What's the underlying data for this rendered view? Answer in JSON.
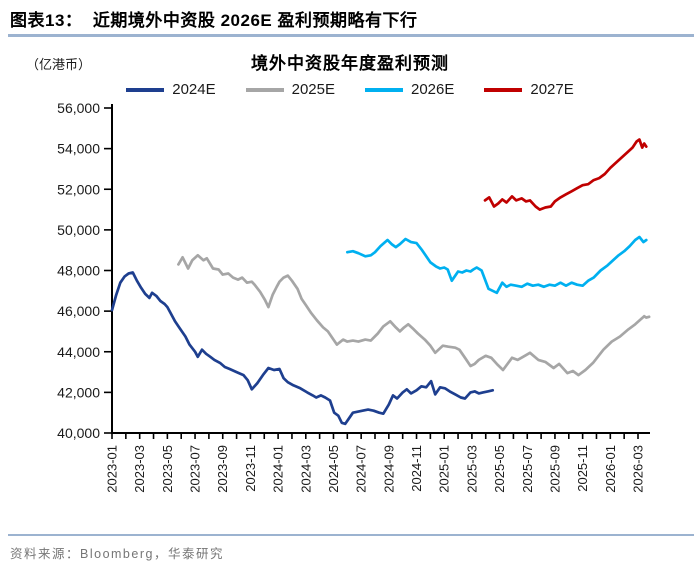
{
  "header": {
    "title": "图表13：  近期境外中资股 2026E 盈利预期略有下行"
  },
  "footer": {
    "source": "资料来源：Bloomberg，华泰研究"
  },
  "colors": {
    "accent_rule": "#9cb3d0",
    "axis": "#000000",
    "source_text": "#767676",
    "series_2024E": "#1e3f8f",
    "series_2025E": "#a6a6a6",
    "series_2026E": "#00b0f0",
    "series_2027E": "#c00000"
  },
  "chart_data": {
    "type": "line",
    "title": "境外中资股年度盈利预测",
    "unit_label": "（亿港币）",
    "ylabel": "",
    "xlabel": "",
    "ylim": [
      40000,
      56000
    ],
    "y_ticks": [
      40000,
      42000,
      44000,
      46000,
      48000,
      50000,
      52000,
      54000,
      56000
    ],
    "grid": false,
    "legend_position": "top",
    "x_note": "x values are months after 2023-01 (0 = 2023-01); axis ticks monthly, labels every 2 months",
    "x_tick_months": [
      0,
      2,
      4,
      6,
      8,
      10,
      12,
      14,
      16,
      18,
      20,
      22,
      24,
      26,
      28,
      30,
      32,
      34,
      36,
      38
    ],
    "x_tick_labels": [
      "2023-01",
      "2023-03",
      "2023-05",
      "2023-07",
      "2023-09",
      "2023-11",
      "2024-01",
      "2024-03",
      "2024-05",
      "2024-07",
      "2024-09",
      "2024-11",
      "2025-01",
      "2025-03",
      "2025-05",
      "2025-07",
      "2025-09",
      "2025-11",
      "2026-01",
      "2026-03"
    ],
    "series": [
      {
        "name": "2024E",
        "color": "#1e3f8f",
        "points": [
          [
            0,
            46050
          ],
          [
            0.3,
            46800
          ],
          [
            0.6,
            47400
          ],
          [
            0.9,
            47700
          ],
          [
            1.2,
            47850
          ],
          [
            1.5,
            47900
          ],
          [
            1.8,
            47500
          ],
          [
            2.1,
            47150
          ],
          [
            2.4,
            46850
          ],
          [
            2.7,
            46650
          ],
          [
            2.9,
            46900
          ],
          [
            3.2,
            46750
          ],
          [
            3.5,
            46500
          ],
          [
            3.8,
            46350
          ],
          [
            4.0,
            46200
          ],
          [
            4.2,
            45950
          ],
          [
            4.55,
            45500
          ],
          [
            4.9,
            45150
          ],
          [
            5.3,
            44750
          ],
          [
            5.6,
            44350
          ],
          [
            6.0,
            44000
          ],
          [
            6.2,
            43750
          ],
          [
            6.5,
            44100
          ],
          [
            6.8,
            43900
          ],
          [
            7.1,
            43750
          ],
          [
            7.4,
            43600
          ],
          [
            7.8,
            43450
          ],
          [
            8.15,
            43250
          ],
          [
            8.5,
            43150
          ],
          [
            9.0,
            43000
          ],
          [
            9.5,
            42850
          ],
          [
            9.8,
            42600
          ],
          [
            10.1,
            42150
          ],
          [
            10.5,
            42450
          ],
          [
            10.9,
            42850
          ],
          [
            11.3,
            43200
          ],
          [
            11.7,
            43100
          ],
          [
            12.1,
            43150
          ],
          [
            12.4,
            42700
          ],
          [
            12.7,
            42500
          ],
          [
            13.1,
            42350
          ],
          [
            13.6,
            42200
          ],
          [
            14.1,
            42000
          ],
          [
            14.5,
            41850
          ],
          [
            14.75,
            41750
          ],
          [
            15.1,
            41850
          ],
          [
            15.4,
            41750
          ],
          [
            15.75,
            41600
          ],
          [
            16.05,
            41000
          ],
          [
            16.35,
            40850
          ],
          [
            16.6,
            40500
          ],
          [
            16.85,
            40450
          ],
          [
            17.1,
            40700
          ],
          [
            17.4,
            41000
          ],
          [
            17.75,
            41050
          ],
          [
            18.1,
            41100
          ],
          [
            18.5,
            41150
          ],
          [
            18.9,
            41100
          ],
          [
            19.3,
            41000
          ],
          [
            19.6,
            40950
          ],
          [
            20.0,
            41400
          ],
          [
            20.3,
            41850
          ],
          [
            20.6,
            41700
          ],
          [
            21.0,
            42000
          ],
          [
            21.3,
            42150
          ],
          [
            21.6,
            41950
          ],
          [
            22.0,
            42100
          ],
          [
            22.35,
            42300
          ],
          [
            22.7,
            42250
          ],
          [
            23.05,
            42550
          ],
          [
            23.35,
            41900
          ],
          [
            23.7,
            42250
          ],
          [
            24.05,
            42200
          ],
          [
            24.4,
            42050
          ],
          [
            24.8,
            41900
          ],
          [
            25.2,
            41750
          ],
          [
            25.5,
            41700
          ],
          [
            25.9,
            42000
          ],
          [
            26.2,
            42050
          ],
          [
            26.5,
            41950
          ],
          [
            26.8,
            42000
          ],
          [
            27.15,
            42050
          ],
          [
            27.5,
            42100
          ]
        ]
      },
      {
        "name": "2025E",
        "color": "#a6a6a6",
        "points": [
          [
            4.8,
            48300
          ],
          [
            5.1,
            48650
          ],
          [
            5.5,
            48100
          ],
          [
            5.8,
            48500
          ],
          [
            6.2,
            48750
          ],
          [
            6.6,
            48500
          ],
          [
            6.85,
            48600
          ],
          [
            7.3,
            48100
          ],
          [
            7.7,
            48050
          ],
          [
            8.0,
            47800
          ],
          [
            8.4,
            47850
          ],
          [
            8.75,
            47650
          ],
          [
            9.1,
            47550
          ],
          [
            9.4,
            47650
          ],
          [
            9.75,
            47400
          ],
          [
            10.1,
            47450
          ],
          [
            10.3,
            47300
          ],
          [
            10.7,
            46950
          ],
          [
            11.05,
            46550
          ],
          [
            11.3,
            46200
          ],
          [
            11.6,
            46800
          ],
          [
            11.9,
            47200
          ],
          [
            12.1,
            47450
          ],
          [
            12.4,
            47650
          ],
          [
            12.7,
            47750
          ],
          [
            13.0,
            47500
          ],
          [
            13.4,
            47100
          ],
          [
            13.7,
            46600
          ],
          [
            14.0,
            46300
          ],
          [
            14.4,
            45900
          ],
          [
            14.8,
            45550
          ],
          [
            15.25,
            45200
          ],
          [
            15.6,
            45000
          ],
          [
            16.0,
            44600
          ],
          [
            16.25,
            44350
          ],
          [
            16.7,
            44600
          ],
          [
            17.0,
            44500
          ],
          [
            17.4,
            44550
          ],
          [
            17.8,
            44500
          ],
          [
            18.3,
            44600
          ],
          [
            18.7,
            44550
          ],
          [
            19.2,
            44900
          ],
          [
            19.6,
            45250
          ],
          [
            20.1,
            45500
          ],
          [
            20.5,
            45200
          ],
          [
            20.8,
            45000
          ],
          [
            21.1,
            45200
          ],
          [
            21.4,
            45350
          ],
          [
            21.8,
            45100
          ],
          [
            22.1,
            44900
          ],
          [
            22.6,
            44600
          ],
          [
            23.0,
            44300
          ],
          [
            23.35,
            43950
          ],
          [
            23.9,
            44300
          ],
          [
            24.3,
            44250
          ],
          [
            24.8,
            44200
          ],
          [
            25.1,
            44100
          ],
          [
            25.5,
            43700
          ],
          [
            25.9,
            43300
          ],
          [
            26.2,
            43400
          ],
          [
            26.5,
            43600
          ],
          [
            27.0,
            43800
          ],
          [
            27.4,
            43700
          ],
          [
            27.8,
            43400
          ],
          [
            28.25,
            43100
          ],
          [
            28.9,
            43700
          ],
          [
            29.3,
            43600
          ],
          [
            29.7,
            43750
          ],
          [
            30.2,
            43950
          ],
          [
            30.8,
            43600
          ],
          [
            31.3,
            43500
          ],
          [
            31.9,
            43200
          ],
          [
            32.3,
            43400
          ],
          [
            32.9,
            42950
          ],
          [
            33.3,
            43050
          ],
          [
            33.7,
            42850
          ],
          [
            34.2,
            43100
          ],
          [
            34.75,
            43450
          ],
          [
            35.5,
            44100
          ],
          [
            36.1,
            44500
          ],
          [
            36.7,
            44750
          ],
          [
            37.3,
            45100
          ],
          [
            37.8,
            45350
          ],
          [
            38.2,
            45600
          ],
          [
            38.45,
            45750
          ],
          [
            38.6,
            45680
          ],
          [
            38.8,
            45720
          ]
        ]
      },
      {
        "name": "2026E",
        "color": "#00b0f0",
        "points": [
          [
            17.0,
            48900
          ],
          [
            17.4,
            48950
          ],
          [
            17.8,
            48850
          ],
          [
            18.3,
            48700
          ],
          [
            18.7,
            48750
          ],
          [
            19.0,
            48900
          ],
          [
            19.4,
            49200
          ],
          [
            19.9,
            49500
          ],
          [
            20.2,
            49300
          ],
          [
            20.5,
            49150
          ],
          [
            20.8,
            49300
          ],
          [
            21.2,
            49550
          ],
          [
            21.6,
            49400
          ],
          [
            22.0,
            49350
          ],
          [
            22.4,
            49000
          ],
          [
            23.0,
            48400
          ],
          [
            23.4,
            48200
          ],
          [
            23.7,
            48100
          ],
          [
            24.0,
            48150
          ],
          [
            24.25,
            48050
          ],
          [
            24.55,
            47500
          ],
          [
            25.0,
            47950
          ],
          [
            25.3,
            47900
          ],
          [
            25.6,
            48000
          ],
          [
            25.9,
            47950
          ],
          [
            26.1,
            48050
          ],
          [
            26.35,
            48150
          ],
          [
            26.7,
            48000
          ],
          [
            27.2,
            47100
          ],
          [
            27.8,
            46900
          ],
          [
            28.2,
            47400
          ],
          [
            28.5,
            47200
          ],
          [
            28.8,
            47300
          ],
          [
            29.2,
            47250
          ],
          [
            29.6,
            47200
          ],
          [
            30.0,
            47350
          ],
          [
            30.4,
            47250
          ],
          [
            30.8,
            47300
          ],
          [
            31.2,
            47200
          ],
          [
            31.6,
            47300
          ],
          [
            32.0,
            47250
          ],
          [
            32.4,
            47400
          ],
          [
            32.8,
            47250
          ],
          [
            33.2,
            47400
          ],
          [
            33.6,
            47300
          ],
          [
            34.0,
            47250
          ],
          [
            34.4,
            47500
          ],
          [
            34.8,
            47650
          ],
          [
            35.3,
            48000
          ],
          [
            35.8,
            48250
          ],
          [
            36.2,
            48500
          ],
          [
            36.6,
            48750
          ],
          [
            37.0,
            48950
          ],
          [
            37.4,
            49200
          ],
          [
            37.8,
            49500
          ],
          [
            38.1,
            49650
          ],
          [
            38.4,
            49400
          ],
          [
            38.6,
            49500
          ]
        ]
      },
      {
        "name": "2027E",
        "color": "#c00000",
        "points": [
          [
            26.95,
            51450
          ],
          [
            27.25,
            51600
          ],
          [
            27.6,
            51150
          ],
          [
            27.9,
            51300
          ],
          [
            28.2,
            51500
          ],
          [
            28.5,
            51350
          ],
          [
            28.9,
            51650
          ],
          [
            29.2,
            51450
          ],
          [
            29.6,
            51550
          ],
          [
            29.9,
            51400
          ],
          [
            30.2,
            51450
          ],
          [
            30.6,
            51150
          ],
          [
            30.9,
            51000
          ],
          [
            31.3,
            51100
          ],
          [
            31.7,
            51150
          ],
          [
            32.0,
            51400
          ],
          [
            32.4,
            51600
          ],
          [
            32.8,
            51750
          ],
          [
            33.2,
            51900
          ],
          [
            33.6,
            52050
          ],
          [
            34.0,
            52200
          ],
          [
            34.4,
            52250
          ],
          [
            34.8,
            52450
          ],
          [
            35.2,
            52550
          ],
          [
            35.6,
            52750
          ],
          [
            36.0,
            53050
          ],
          [
            36.4,
            53300
          ],
          [
            36.8,
            53550
          ],
          [
            37.2,
            53800
          ],
          [
            37.6,
            54050
          ],
          [
            37.9,
            54350
          ],
          [
            38.1,
            54450
          ],
          [
            38.3,
            54050
          ],
          [
            38.45,
            54250
          ],
          [
            38.6,
            54100
          ]
        ]
      }
    ]
  }
}
